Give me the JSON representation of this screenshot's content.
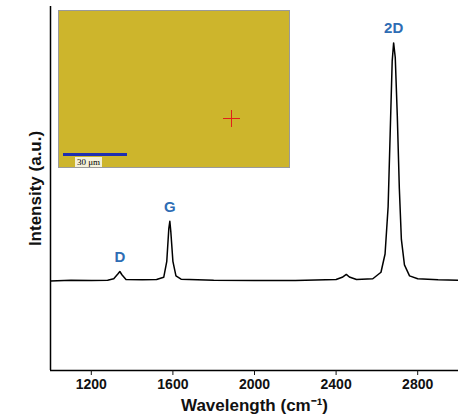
{
  "chart_data": {
    "type": "line",
    "x_label": "Wavelength (cm⁻¹)",
    "y_label": "Intensity (a.u.)",
    "x": [
      1000,
      1100,
      1200,
      1280,
      1310,
      1330,
      1340,
      1350,
      1370,
      1450,
      1520,
      1555,
      1570,
      1580,
      1585,
      1590,
      1600,
      1615,
      1640,
      1800,
      2000,
      2200,
      2400,
      2430,
      2450,
      2465,
      2500,
      2580,
      2620,
      2640,
      2655,
      2665,
      2675,
      2682,
      2690,
      2700,
      2710,
      2720,
      2735,
      2760,
      2800,
      2900,
      3000
    ],
    "values": [
      24.6,
      24.8,
      24.7,
      24.8,
      25.2,
      26.5,
      27.2,
      26.3,
      25.0,
      24.9,
      25.0,
      25.6,
      30,
      39,
      41,
      38,
      30,
      26,
      25.1,
      24.8,
      24.7,
      24.7,
      25.0,
      25.6,
      26.4,
      25.7,
      25.0,
      25.2,
      27,
      32,
      45,
      65,
      85,
      90,
      86,
      70,
      50,
      36,
      29,
      26,
      25.2,
      24.9,
      24.8
    ],
    "color": "#000000",
    "xlim": [
      1000,
      3000
    ],
    "xticks": [
      1200,
      1600,
      2000,
      2400,
      2800
    ],
    "ylim": [
      0,
      100
    ],
    "yticks": [],
    "tick_labels": "x",
    "grid": false,
    "annotations": [
      {
        "text": "D",
        "x": 1340,
        "y": 31,
        "color": "#2e6db4"
      },
      {
        "text": "G",
        "x": 1585,
        "y": 45,
        "color": "#2e6db4"
      },
      {
        "text": "2D",
        "x": 2682,
        "y": 94,
        "color": "#2e6db4"
      }
    ],
    "inset": {
      "scale_bar_label": "30 μm"
    }
  }
}
